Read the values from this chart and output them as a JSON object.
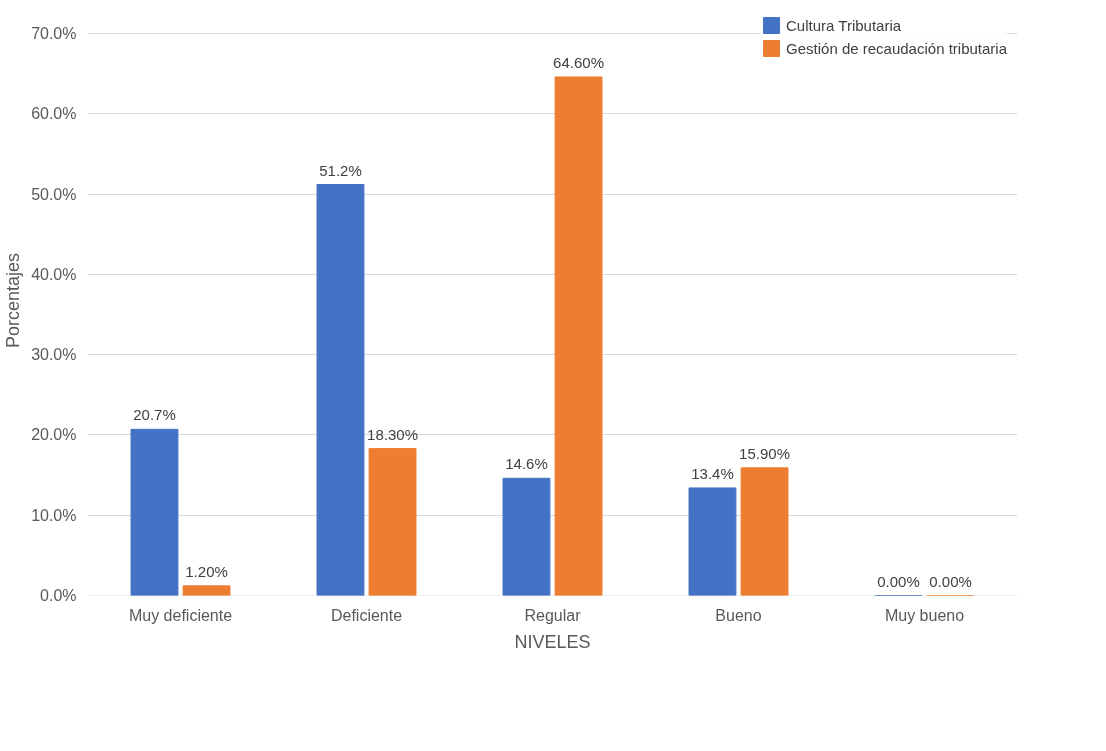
{
  "chart_data": {
    "type": "bar",
    "xlabel": "NIVELES",
    "ylabel": "Porcentajes",
    "categories": [
      "Muy deficiente",
      "Deficiente",
      "Regular",
      "Bueno",
      "Muy bueno"
    ],
    "series": [
      {
        "name": "Cultura Tributaria",
        "color": "#4472c4",
        "values": [
          20.7,
          51.2,
          14.6,
          13.4,
          0.0
        ],
        "value_labels": [
          "20.7%",
          "51.2%",
          "14.6%",
          "13.4%",
          "0.00%"
        ]
      },
      {
        "name": "Gestión de recaudación tributaria",
        "color": "#ed7d31",
        "values": [
          1.2,
          18.3,
          64.6,
          15.9,
          0.0
        ],
        "value_labels": [
          "1.20%",
          "18.30%",
          "64.60%",
          "15.90%",
          "0.00%"
        ]
      }
    ],
    "ylim": [
      0,
      70
    ],
    "yticks": [
      {
        "value": 0,
        "label": "0.0%"
      },
      {
        "value": 10,
        "label": "10.0%"
      },
      {
        "value": 20,
        "label": "20.0%"
      },
      {
        "value": 30,
        "label": "30.0%"
      },
      {
        "value": 40,
        "label": "40.0%"
      },
      {
        "value": 50,
        "label": "50.0%"
      },
      {
        "value": 60,
        "label": "60.0%"
      },
      {
        "value": 70,
        "label": "70.0%"
      }
    ],
    "grid": "y",
    "legend": "right"
  }
}
